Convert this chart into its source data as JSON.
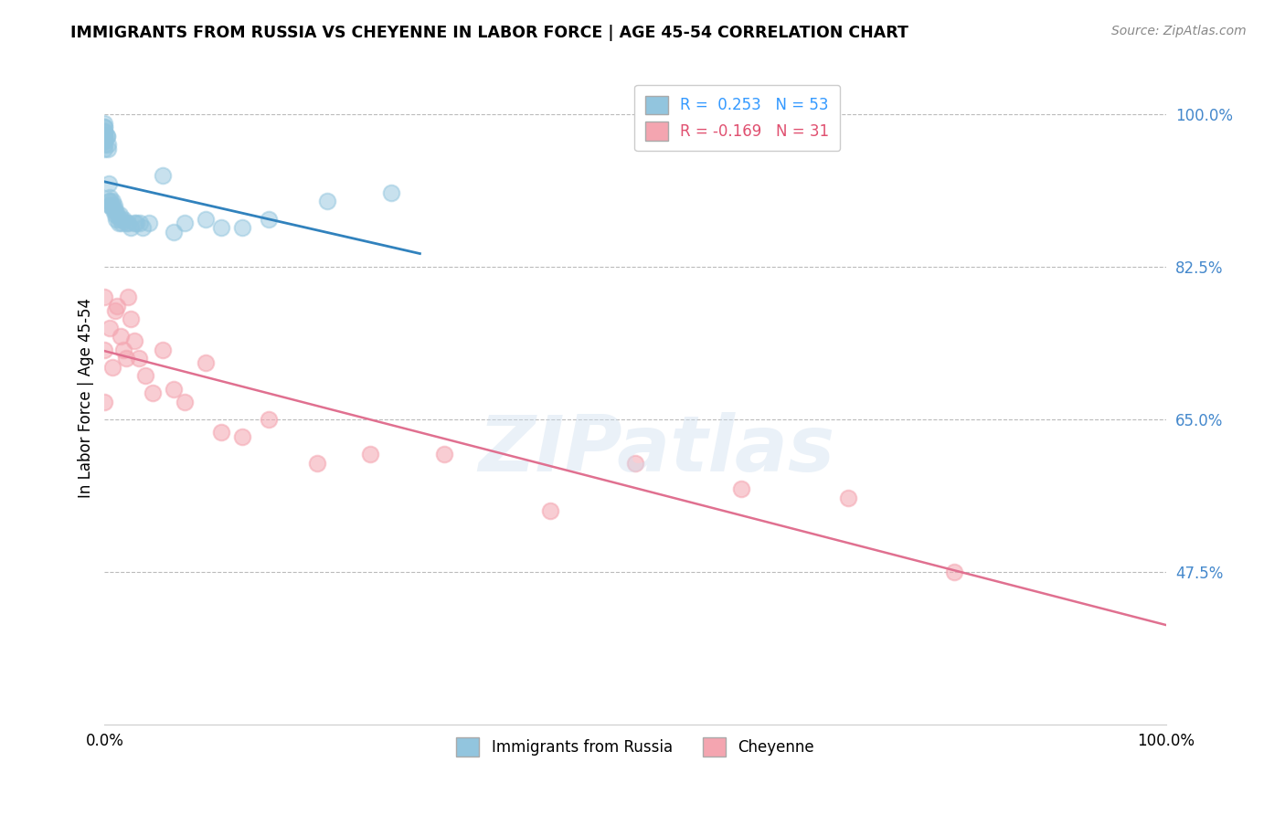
{
  "title": "IMMIGRANTS FROM RUSSIA VS CHEYENNE IN LABOR FORCE | AGE 45-54 CORRELATION CHART",
  "source": "Source: ZipAtlas.com",
  "ylabel": "In Labor Force | Age 45-54",
  "xlim": [
    0.0,
    1.0
  ],
  "ylim": [
    0.3,
    1.05
  ],
  "yticks": [
    0.475,
    0.65,
    0.825,
    1.0
  ],
  "ytick_labels": [
    "47.5%",
    "65.0%",
    "82.5%",
    "100.0%"
  ],
  "xtick_labels": [
    "0.0%",
    "100.0%"
  ],
  "xticks": [
    0.0,
    1.0
  ],
  "russia_R": 0.253,
  "russia_N": 53,
  "cheyenne_R": -0.169,
  "cheyenne_N": 31,
  "russia_color": "#92c5de",
  "cheyenne_color": "#f4a5b0",
  "russia_line_color": "#3182bd",
  "cheyenne_line_color": "#e07090",
  "legend_label_russia": "Immigrants from Russia",
  "legend_label_cheyenne": "Cheyenne",
  "watermark": "ZIPatlas",
  "russia_points_x": [
    0.0,
    0.0,
    0.0,
    0.0,
    0.0,
    0.0,
    0.0,
    0.0,
    0.0,
    0.0,
    0.0,
    0.0,
    0.0,
    0.002,
    0.002,
    0.003,
    0.003,
    0.004,
    0.004,
    0.005,
    0.005,
    0.005,
    0.006,
    0.007,
    0.007,
    0.008,
    0.009,
    0.01,
    0.01,
    0.011,
    0.012,
    0.013,
    0.014,
    0.015,
    0.016,
    0.018,
    0.02,
    0.022,
    0.025,
    0.028,
    0.03,
    0.033,
    0.036,
    0.042,
    0.055,
    0.065,
    0.075,
    0.095,
    0.11,
    0.13,
    0.155,
    0.21,
    0.27
  ],
  "russia_points_y": [
    0.985,
    0.985,
    0.99,
    0.975,
    0.975,
    0.975,
    0.975,
    0.98,
    0.98,
    0.97,
    0.97,
    0.965,
    0.96,
    0.975,
    0.975,
    0.965,
    0.96,
    0.92,
    0.9,
    0.895,
    0.9,
    0.905,
    0.895,
    0.895,
    0.9,
    0.89,
    0.895,
    0.885,
    0.89,
    0.88,
    0.885,
    0.875,
    0.885,
    0.88,
    0.875,
    0.88,
    0.875,
    0.875,
    0.87,
    0.875,
    0.875,
    0.875,
    0.87,
    0.875,
    0.93,
    0.865,
    0.875,
    0.88,
    0.87,
    0.87,
    0.88,
    0.9,
    0.91
  ],
  "cheyenne_points_x": [
    0.0,
    0.0,
    0.0,
    0.005,
    0.007,
    0.01,
    0.012,
    0.015,
    0.018,
    0.02,
    0.022,
    0.025,
    0.028,
    0.032,
    0.038,
    0.045,
    0.055,
    0.065,
    0.075,
    0.095,
    0.11,
    0.13,
    0.155,
    0.2,
    0.25,
    0.32,
    0.42,
    0.5,
    0.6,
    0.7,
    0.8
  ],
  "cheyenne_points_y": [
    0.79,
    0.73,
    0.67,
    0.755,
    0.71,
    0.775,
    0.78,
    0.745,
    0.73,
    0.72,
    0.79,
    0.765,
    0.74,
    0.72,
    0.7,
    0.68,
    0.73,
    0.685,
    0.67,
    0.715,
    0.635,
    0.63,
    0.65,
    0.6,
    0.61,
    0.61,
    0.545,
    0.6,
    0.57,
    0.56,
    0.475
  ]
}
